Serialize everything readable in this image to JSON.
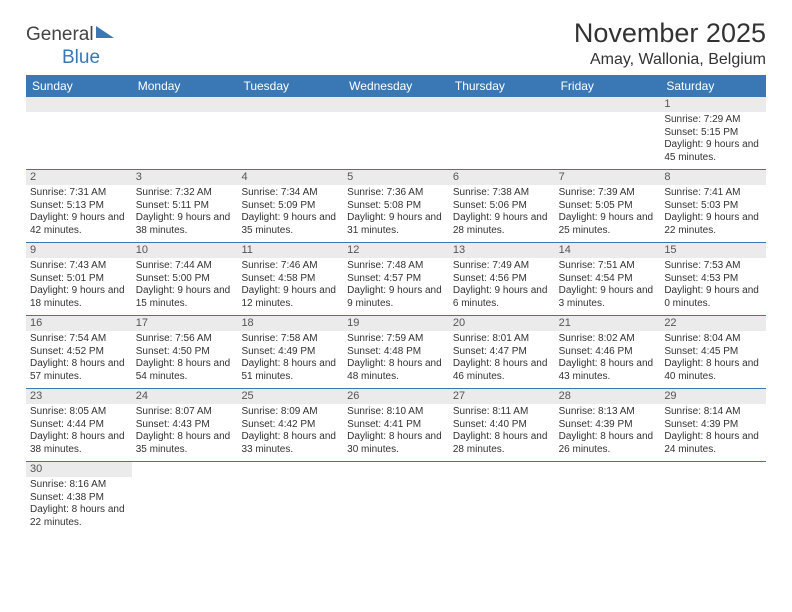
{
  "logo": {
    "part1": "General",
    "part2": "Blue"
  },
  "title": "November 2025",
  "location": "Amay, Wallonia, Belgium",
  "day_headers": [
    "Sunday",
    "Monday",
    "Tuesday",
    "Wednesday",
    "Thursday",
    "Friday",
    "Saturday"
  ],
  "colors": {
    "header_bg": "#3a78b5",
    "header_text": "#ffffff",
    "daynum_bg": "#ebebeb",
    "row_divider": "#3a78b5",
    "text": "#333333"
  },
  "weeks": [
    [
      {
        "blank": true
      },
      {
        "blank": true
      },
      {
        "blank": true
      },
      {
        "blank": true
      },
      {
        "blank": true
      },
      {
        "blank": true
      },
      {
        "n": "1",
        "sunrise": "Sunrise: 7:29 AM",
        "sunset": "Sunset: 5:15 PM",
        "daylight": "Daylight: 9 hours and 45 minutes."
      }
    ],
    [
      {
        "n": "2",
        "sunrise": "Sunrise: 7:31 AM",
        "sunset": "Sunset: 5:13 PM",
        "daylight": "Daylight: 9 hours and 42 minutes."
      },
      {
        "n": "3",
        "sunrise": "Sunrise: 7:32 AM",
        "sunset": "Sunset: 5:11 PM",
        "daylight": "Daylight: 9 hours and 38 minutes."
      },
      {
        "n": "4",
        "sunrise": "Sunrise: 7:34 AM",
        "sunset": "Sunset: 5:09 PM",
        "daylight": "Daylight: 9 hours and 35 minutes."
      },
      {
        "n": "5",
        "sunrise": "Sunrise: 7:36 AM",
        "sunset": "Sunset: 5:08 PM",
        "daylight": "Daylight: 9 hours and 31 minutes."
      },
      {
        "n": "6",
        "sunrise": "Sunrise: 7:38 AM",
        "sunset": "Sunset: 5:06 PM",
        "daylight": "Daylight: 9 hours and 28 minutes."
      },
      {
        "n": "7",
        "sunrise": "Sunrise: 7:39 AM",
        "sunset": "Sunset: 5:05 PM",
        "daylight": "Daylight: 9 hours and 25 minutes."
      },
      {
        "n": "8",
        "sunrise": "Sunrise: 7:41 AM",
        "sunset": "Sunset: 5:03 PM",
        "daylight": "Daylight: 9 hours and 22 minutes."
      }
    ],
    [
      {
        "n": "9",
        "sunrise": "Sunrise: 7:43 AM",
        "sunset": "Sunset: 5:01 PM",
        "daylight": "Daylight: 9 hours and 18 minutes."
      },
      {
        "n": "10",
        "sunrise": "Sunrise: 7:44 AM",
        "sunset": "Sunset: 5:00 PM",
        "daylight": "Daylight: 9 hours and 15 minutes."
      },
      {
        "n": "11",
        "sunrise": "Sunrise: 7:46 AM",
        "sunset": "Sunset: 4:58 PM",
        "daylight": "Daylight: 9 hours and 12 minutes."
      },
      {
        "n": "12",
        "sunrise": "Sunrise: 7:48 AM",
        "sunset": "Sunset: 4:57 PM",
        "daylight": "Daylight: 9 hours and 9 minutes."
      },
      {
        "n": "13",
        "sunrise": "Sunrise: 7:49 AM",
        "sunset": "Sunset: 4:56 PM",
        "daylight": "Daylight: 9 hours and 6 minutes."
      },
      {
        "n": "14",
        "sunrise": "Sunrise: 7:51 AM",
        "sunset": "Sunset: 4:54 PM",
        "daylight": "Daylight: 9 hours and 3 minutes."
      },
      {
        "n": "15",
        "sunrise": "Sunrise: 7:53 AM",
        "sunset": "Sunset: 4:53 PM",
        "daylight": "Daylight: 9 hours and 0 minutes."
      }
    ],
    [
      {
        "n": "16",
        "sunrise": "Sunrise: 7:54 AM",
        "sunset": "Sunset: 4:52 PM",
        "daylight": "Daylight: 8 hours and 57 minutes."
      },
      {
        "n": "17",
        "sunrise": "Sunrise: 7:56 AM",
        "sunset": "Sunset: 4:50 PM",
        "daylight": "Daylight: 8 hours and 54 minutes."
      },
      {
        "n": "18",
        "sunrise": "Sunrise: 7:58 AM",
        "sunset": "Sunset: 4:49 PM",
        "daylight": "Daylight: 8 hours and 51 minutes."
      },
      {
        "n": "19",
        "sunrise": "Sunrise: 7:59 AM",
        "sunset": "Sunset: 4:48 PM",
        "daylight": "Daylight: 8 hours and 48 minutes."
      },
      {
        "n": "20",
        "sunrise": "Sunrise: 8:01 AM",
        "sunset": "Sunset: 4:47 PM",
        "daylight": "Daylight: 8 hours and 46 minutes."
      },
      {
        "n": "21",
        "sunrise": "Sunrise: 8:02 AM",
        "sunset": "Sunset: 4:46 PM",
        "daylight": "Daylight: 8 hours and 43 minutes."
      },
      {
        "n": "22",
        "sunrise": "Sunrise: 8:04 AM",
        "sunset": "Sunset: 4:45 PM",
        "daylight": "Daylight: 8 hours and 40 minutes."
      }
    ],
    [
      {
        "n": "23",
        "sunrise": "Sunrise: 8:05 AM",
        "sunset": "Sunset: 4:44 PM",
        "daylight": "Daylight: 8 hours and 38 minutes."
      },
      {
        "n": "24",
        "sunrise": "Sunrise: 8:07 AM",
        "sunset": "Sunset: 4:43 PM",
        "daylight": "Daylight: 8 hours and 35 minutes."
      },
      {
        "n": "25",
        "sunrise": "Sunrise: 8:09 AM",
        "sunset": "Sunset: 4:42 PM",
        "daylight": "Daylight: 8 hours and 33 minutes."
      },
      {
        "n": "26",
        "sunrise": "Sunrise: 8:10 AM",
        "sunset": "Sunset: 4:41 PM",
        "daylight": "Daylight: 8 hours and 30 minutes."
      },
      {
        "n": "27",
        "sunrise": "Sunrise: 8:11 AM",
        "sunset": "Sunset: 4:40 PM",
        "daylight": "Daylight: 8 hours and 28 minutes."
      },
      {
        "n": "28",
        "sunrise": "Sunrise: 8:13 AM",
        "sunset": "Sunset: 4:39 PM",
        "daylight": "Daylight: 8 hours and 26 minutes."
      },
      {
        "n": "29",
        "sunrise": "Sunrise: 8:14 AM",
        "sunset": "Sunset: 4:39 PM",
        "daylight": "Daylight: 8 hours and 24 minutes."
      }
    ],
    [
      {
        "n": "30",
        "sunrise": "Sunrise: 8:16 AM",
        "sunset": "Sunset: 4:38 PM",
        "daylight": "Daylight: 8 hours and 22 minutes."
      },
      {
        "blank": true
      },
      {
        "blank": true
      },
      {
        "blank": true
      },
      {
        "blank": true
      },
      {
        "blank": true
      },
      {
        "blank": true
      }
    ]
  ]
}
